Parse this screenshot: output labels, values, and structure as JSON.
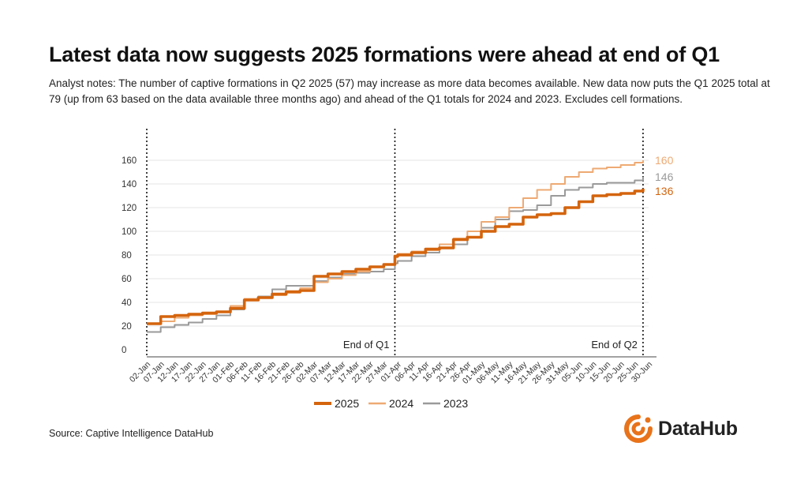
{
  "header": {
    "title": "Latest data now suggests 2025 formations were ahead at end of Q1",
    "subtitle": "Analyst notes: The number of captive formations in Q2 2025 (57) may increase as more data becomes available. New data now puts the Q1 2025 total at 79 (up from 63 based on the data available three months ago) and ahead of the Q1 totals for 2024 and 2023. Excludes cell formations."
  },
  "footer": {
    "source": "Source: Captive Intelligence DataHub",
    "logo_text": "DataHub"
  },
  "chart_data": {
    "type": "line",
    "title": "",
    "xlabel": "",
    "ylabel": "",
    "ylim": [
      0,
      160
    ],
    "yticks": [
      "0",
      "20",
      "40",
      "60",
      "80",
      "100",
      "120",
      "140",
      "160"
    ],
    "x_ticks": [
      "02-Jan",
      "07-Jan",
      "12-Jan",
      "17-Jan",
      "22-Jan",
      "27-Jan",
      "01-Feb",
      "06-Feb",
      "11-Feb",
      "16-Feb",
      "21-Feb",
      "26-Feb",
      "02-Mar",
      "07-Mar",
      "12-Mar",
      "17-Mar",
      "22-Mar",
      "27-Mar",
      "01-Apr",
      "06-Apr",
      "11-Apr",
      "16-Apr",
      "21-Apr",
      "26-Apr",
      "01-May",
      "06-May",
      "11-May",
      "16-May",
      "21-May",
      "26-May",
      "31-May",
      "05-Jun",
      "10-Jun",
      "15-Jun",
      "20-Jun",
      "25-Jun",
      "30-Jun"
    ],
    "grid": true,
    "legend_position": "bottom",
    "annotations": [
      {
        "label": "End of Q1",
        "x_index": 17.8
      },
      {
        "label": "End of Q2",
        "x_index": 35.6
      }
    ],
    "series": [
      {
        "name": "2025",
        "color": "#d4640d",
        "end_label": "136",
        "x_index": [
          0,
          1,
          2,
          3,
          4,
          5,
          6,
          7,
          8,
          9,
          10,
          11,
          12,
          13,
          14,
          15,
          16,
          17,
          17.8,
          18,
          19,
          20,
          21,
          22,
          23,
          24,
          25,
          26,
          27,
          28,
          29,
          30,
          31,
          32,
          33,
          34,
          35,
          35.6
        ],
        "values": [
          22,
          28,
          29,
          30,
          31,
          32,
          35,
          42,
          44,
          47,
          49,
          50,
          62,
          64,
          66,
          68,
          70,
          72,
          79,
          80,
          82,
          85,
          86,
          93,
          95,
          100,
          104,
          106,
          112,
          114,
          115,
          120,
          125,
          130,
          131,
          132,
          134,
          136
        ]
      },
      {
        "name": "2024",
        "color": "#eeaa73",
        "end_label": "160",
        "x_index": [
          0,
          1,
          2,
          3,
          4,
          5,
          6,
          7,
          8,
          9,
          10,
          11,
          12,
          13,
          14,
          15,
          16,
          17,
          17.8,
          18,
          19,
          20,
          21,
          22,
          23,
          24,
          25,
          26,
          27,
          28,
          29,
          30,
          31,
          32,
          33,
          34,
          35,
          35.6
        ],
        "values": [
          22,
          24,
          27,
          29,
          30,
          32,
          37,
          43,
          44,
          46,
          48,
          52,
          57,
          60,
          63,
          66,
          70,
          72,
          78,
          81,
          83,
          84,
          89,
          94,
          100,
          108,
          112,
          120,
          128,
          135,
          140,
          146,
          150,
          153,
          154,
          156,
          158,
          160
        ]
      },
      {
        "name": "2023",
        "color": "#9a9a9a",
        "end_label": "146",
        "x_index": [
          0,
          1,
          2,
          3,
          4,
          5,
          6,
          7,
          8,
          9,
          10,
          11,
          12,
          13,
          14,
          15,
          16,
          17,
          17.8,
          18,
          19,
          20,
          21,
          22,
          23,
          24,
          25,
          26,
          27,
          28,
          29,
          30,
          31,
          32,
          33,
          34,
          35,
          35.6
        ],
        "values": [
          15,
          19,
          21,
          23,
          26,
          29,
          34,
          42,
          45,
          51,
          54,
          54,
          58,
          61,
          64,
          65,
          66,
          68,
          73,
          75,
          79,
          82,
          86,
          89,
          95,
          103,
          110,
          117,
          118,
          122,
          130,
          135,
          137,
          140,
          141,
          141,
          143,
          146
        ]
      }
    ]
  }
}
